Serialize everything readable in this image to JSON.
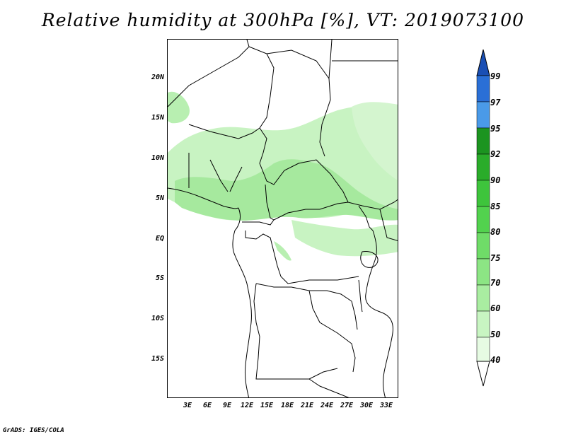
{
  "title": "Relative humidity at 300hPa [%], VT: 2019073100",
  "credit": "GrADS: IGES/COLA",
  "y_axis_labels": [
    "20N",
    "15N",
    "10N",
    "5N",
    "EQ",
    "5S",
    "10S",
    "15S"
  ],
  "x_axis_labels": [
    "3E",
    "6E",
    "9E",
    "12E",
    "15E",
    "18E",
    "21E",
    "24E",
    "27E",
    "30E",
    "33E"
  ],
  "colorbar": {
    "labels": [
      "99",
      "97",
      "95",
      "92",
      "90",
      "85",
      "80",
      "75",
      "70",
      "60",
      "50",
      "40"
    ],
    "colors": {
      "rh_40_50": "#e6fbe3",
      "rh_50_60": "#c8f5c2",
      "rh_60_70": "#a9eda1",
      "rh_70_75": "#8ce584",
      "rh_75_80": "#6fdc68",
      "rh_80_85": "#52d24e",
      "rh_85_90": "#3ec43c",
      "rh_90_92": "#2aac2a",
      "rh_92_95": "#1c9420",
      "rh_95_97": "#4a9ae8",
      "rh_97_99": "#2a6fd6",
      "rh_99_up": "#1a4fb4"
    }
  },
  "map_colors": {
    "land_border": "#000000",
    "humid_light": "#c6f3c0",
    "humid_mid": "#a2e99a"
  }
}
